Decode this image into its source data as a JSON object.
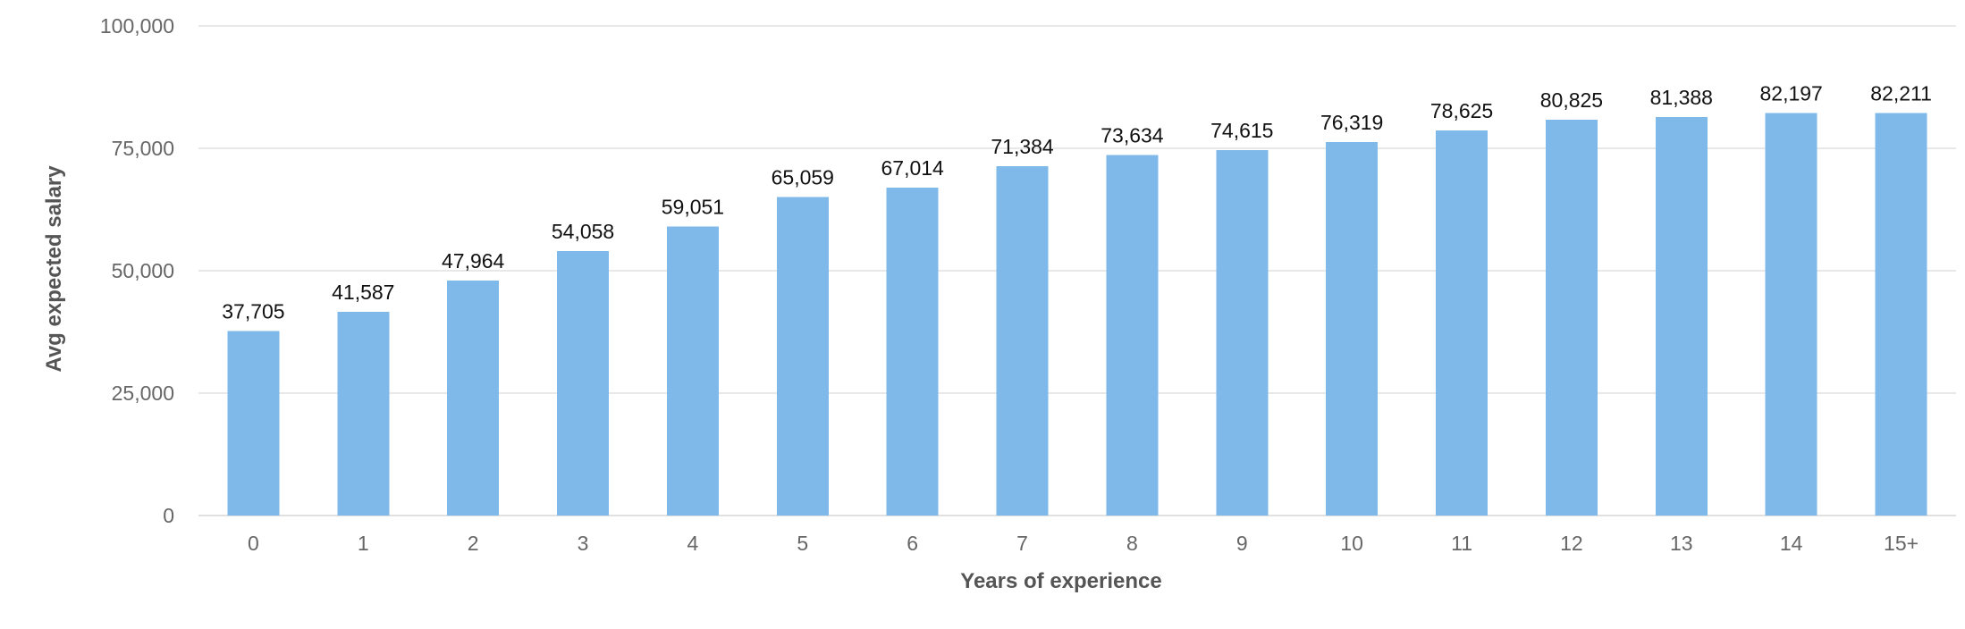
{
  "chart_data": {
    "type": "bar",
    "title": "",
    "xlabel": "Years of experience",
    "ylabel": "Avg expected salary",
    "categories": [
      "0",
      "1",
      "2",
      "3",
      "4",
      "5",
      "6",
      "7",
      "8",
      "9",
      "10",
      "11",
      "12",
      "13",
      "14",
      "15+"
    ],
    "values": [
      37705,
      41587,
      47964,
      54058,
      59051,
      65059,
      67014,
      71384,
      73634,
      74615,
      76319,
      78625,
      80825,
      81388,
      82197,
      82211
    ],
    "value_labels": [
      "37,705",
      "41,587",
      "47,964",
      "54,058",
      "59,051",
      "65,059",
      "67,014",
      "71,384",
      "73,634",
      "74,615",
      "76,319",
      "78,625",
      "80,825",
      "81,388",
      "82,197",
      "82,211"
    ],
    "ylim": [
      0,
      100000
    ],
    "yticks": [
      0,
      25000,
      50000,
      75000,
      100000
    ],
    "ytick_labels": [
      "0",
      "25,000",
      "50,000",
      "75,000",
      "100,000"
    ],
    "grid": true,
    "legend": "none",
    "bar_color": "#7eb9ea"
  }
}
